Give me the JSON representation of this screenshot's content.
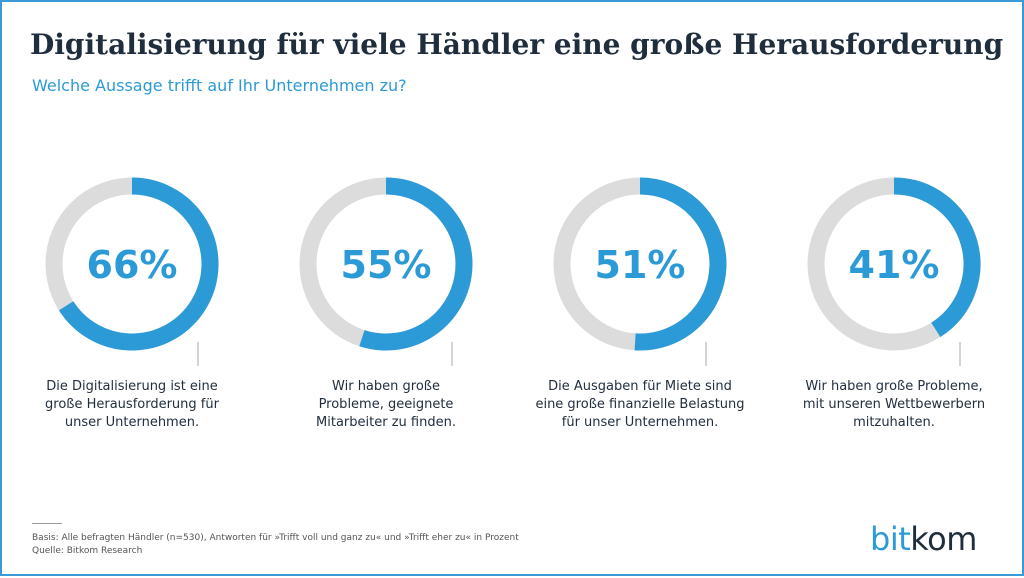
{
  "title": "Digitalisierung für viele Händler eine große Herausforderung",
  "subtitle": "Welche Aussage trifft auf Ihr Unternehmen zu?",
  "colors": {
    "accent": "#2b9ad6",
    "track": "#dcdcdc",
    "title": "#1f2d3d",
    "frame": "#3a9ad6"
  },
  "chart_data": {
    "type": "donut",
    "unit": "%",
    "items": [
      {
        "value": 66,
        "value_label": "66%",
        "caption": [
          "Die Digitalisierung ist eine",
          "große Herausforderung für",
          "unser Unternehmen."
        ]
      },
      {
        "value": 55,
        "value_label": "55%",
        "caption": [
          "Wir haben große",
          "Probleme, geeignete",
          "Mitarbeiter zu finden."
        ]
      },
      {
        "value": 51,
        "value_label": "51%",
        "caption": [
          "Die Ausgaben für Miete sind",
          "eine große finanzielle Belastung",
          "für unser Unternehmen."
        ]
      },
      {
        "value": 41,
        "value_label": "41%",
        "caption": [
          "Wir haben große Probleme,",
          "mit unseren Wettbewerbern",
          "mitzuhalten."
        ]
      }
    ]
  },
  "footnote": {
    "basis": "Basis: Alle befragten Händler (n=530), Antworten für »Trifft voll und ganz zu« und »Trifft eher zu« in Prozent",
    "source": "Quelle: Bitkom Research"
  },
  "logo": {
    "part1": "bit",
    "part2": "kom"
  }
}
